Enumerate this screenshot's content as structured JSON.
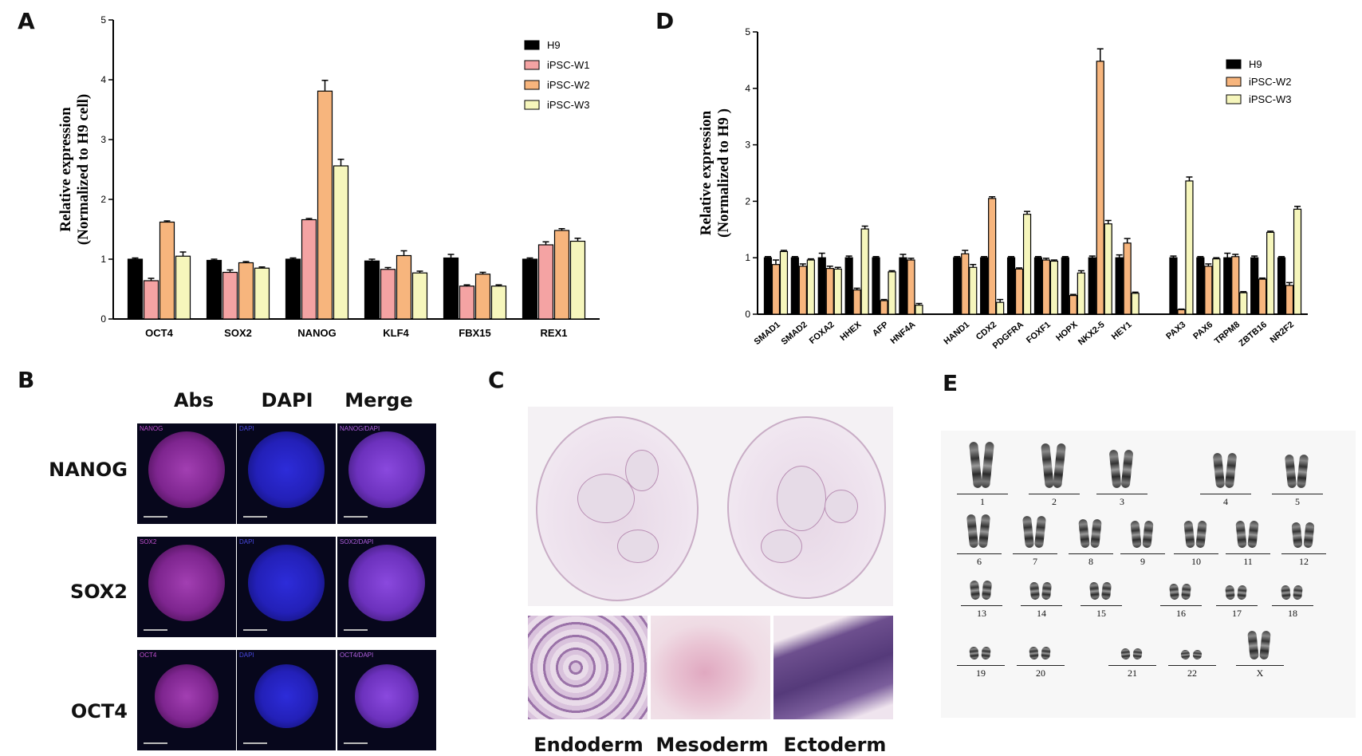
{
  "panels": {
    "a": "A",
    "b": "B",
    "c": "C",
    "d": "D",
    "e": "E"
  },
  "chart_data": [
    {
      "id": "A",
      "type": "bar",
      "ylabel": "Relative expression",
      "ylabel2": "(Normalized to H9 cell)",
      "ylim": [
        0,
        5
      ],
      "yticks": [
        "0",
        "1",
        "2",
        "3",
        "4",
        "5"
      ],
      "categories": [
        "OCT4",
        "SOX2",
        "NANOG",
        "KLF4",
        "FBX15",
        "REX1"
      ],
      "series": [
        {
          "name": "H9",
          "color": "#000000",
          "values": [
            1.0,
            0.98,
            1.0,
            0.97,
            1.02,
            1.0
          ],
          "errors": [
            0.02,
            0.02,
            0.02,
            0.03,
            0.06,
            0.02
          ]
        },
        {
          "name": "iPSC-W1",
          "color": "#f4a3a3",
          "values": [
            0.64,
            0.78,
            1.66,
            0.83,
            0.55,
            1.24
          ],
          "errors": [
            0.04,
            0.04,
            0.02,
            0.03,
            0.02,
            0.05
          ]
        },
        {
          "name": "iPSC-W2",
          "color": "#f7b57d",
          "values": [
            1.62,
            0.94,
            3.81,
            1.06,
            0.75,
            1.48
          ],
          "errors": [
            0.02,
            0.02,
            0.18,
            0.08,
            0.03,
            0.03
          ]
        },
        {
          "name": "iPSC-W3",
          "color": "#f6f6bc",
          "values": [
            1.05,
            0.85,
            2.56,
            0.77,
            0.55,
            1.3
          ],
          "errors": [
            0.07,
            0.02,
            0.11,
            0.03,
            0.02,
            0.05
          ]
        }
      ]
    },
    {
      "id": "D",
      "type": "bar",
      "ylabel": "Relative expression",
      "ylabel2": "(Normalized to H9 )",
      "ylim": [
        0,
        5
      ],
      "yticks": [
        "0",
        "1",
        "2",
        "3",
        "4",
        "5"
      ],
      "categories": [
        "SMAD1",
        "SMAD2",
        "FOXA2",
        "HHEX",
        "AFP",
        "HNF4A",
        "",
        "HAND1",
        "CDX2",
        "PDGFRA",
        "FOXF1",
        "HOPX",
        "NKX2-5",
        "HEY1",
        "",
        "PAX3",
        "PAX6",
        "TRPM8",
        "ZBTB16",
        "NR2F2"
      ],
      "series": [
        {
          "name": "H9",
          "color": "#000000",
          "values": [
            1.0,
            1.0,
            1.0,
            1.0,
            1.0,
            1.0,
            null,
            1.0,
            1.0,
            1.0,
            1.0,
            1.0,
            1.0,
            1.0,
            null,
            1.0,
            1.0,
            1.0,
            1.0,
            1.0
          ],
          "errors": [
            0.02,
            0.02,
            0.08,
            0.03,
            0.02,
            0.06,
            null,
            0.02,
            0.02,
            0.02,
            0.02,
            0.02,
            0.03,
            0.05,
            null,
            0.03,
            0.02,
            0.08,
            0.03,
            0.02
          ]
        },
        {
          "name": "iPSC-W2",
          "color": "#f7b57d",
          "values": [
            0.88,
            0.85,
            0.81,
            0.43,
            0.24,
            0.96,
            null,
            1.07,
            2.05,
            0.8,
            0.96,
            0.33,
            4.48,
            1.26,
            null,
            0.08,
            0.85,
            1.02,
            0.62,
            0.51
          ],
          "errors": [
            0.08,
            0.04,
            0.04,
            0.03,
            0.02,
            0.03,
            null,
            0.06,
            0.03,
            0.02,
            0.03,
            0.02,
            0.22,
            0.08,
            null,
            0.01,
            0.04,
            0.04,
            0.02,
            0.05
          ]
        },
        {
          "name": "iPSC-W3",
          "color": "#f6f6bc",
          "values": [
            1.11,
            0.96,
            0.8,
            1.51,
            0.75,
            0.16,
            null,
            0.83,
            0.21,
            1.77,
            0.94,
            0.73,
            1.6,
            0.37,
            null,
            2.36,
            0.98,
            0.38,
            1.45,
            1.86
          ],
          "errors": [
            0.02,
            0.02,
            0.03,
            0.05,
            0.02,
            0.03,
            null,
            0.05,
            0.05,
            0.05,
            0.02,
            0.04,
            0.06,
            0.02,
            null,
            0.07,
            0.02,
            0.02,
            0.02,
            0.05
          ]
        }
      ]
    }
  ],
  "panel_b": {
    "column_headers": [
      "Abs",
      "DAPI",
      "Merge"
    ],
    "rows": [
      {
        "label": "NANOG",
        "captions": [
          "NANOG",
          "DAPI",
          "NANOG/DAPI"
        ]
      },
      {
        "label": "SOX2",
        "captions": [
          "SOX2",
          "DAPI",
          "SOX2/DAPI"
        ]
      },
      {
        "label": "OCT4",
        "captions": [
          "OCT4",
          "DAPI",
          "OCT4/DAPI"
        ]
      }
    ]
  },
  "panel_c": {
    "labels": [
      "Endoderm",
      "Mesoderm",
      "Ectoderm"
    ]
  },
  "panel_e": {
    "chromosomes": [
      "1",
      "2",
      "3",
      "4",
      "5",
      "6",
      "7",
      "8",
      "9",
      "10",
      "11",
      "12",
      "13",
      "14",
      "15",
      "16",
      "17",
      "18",
      "19",
      "20",
      "21",
      "22",
      "X"
    ]
  }
}
